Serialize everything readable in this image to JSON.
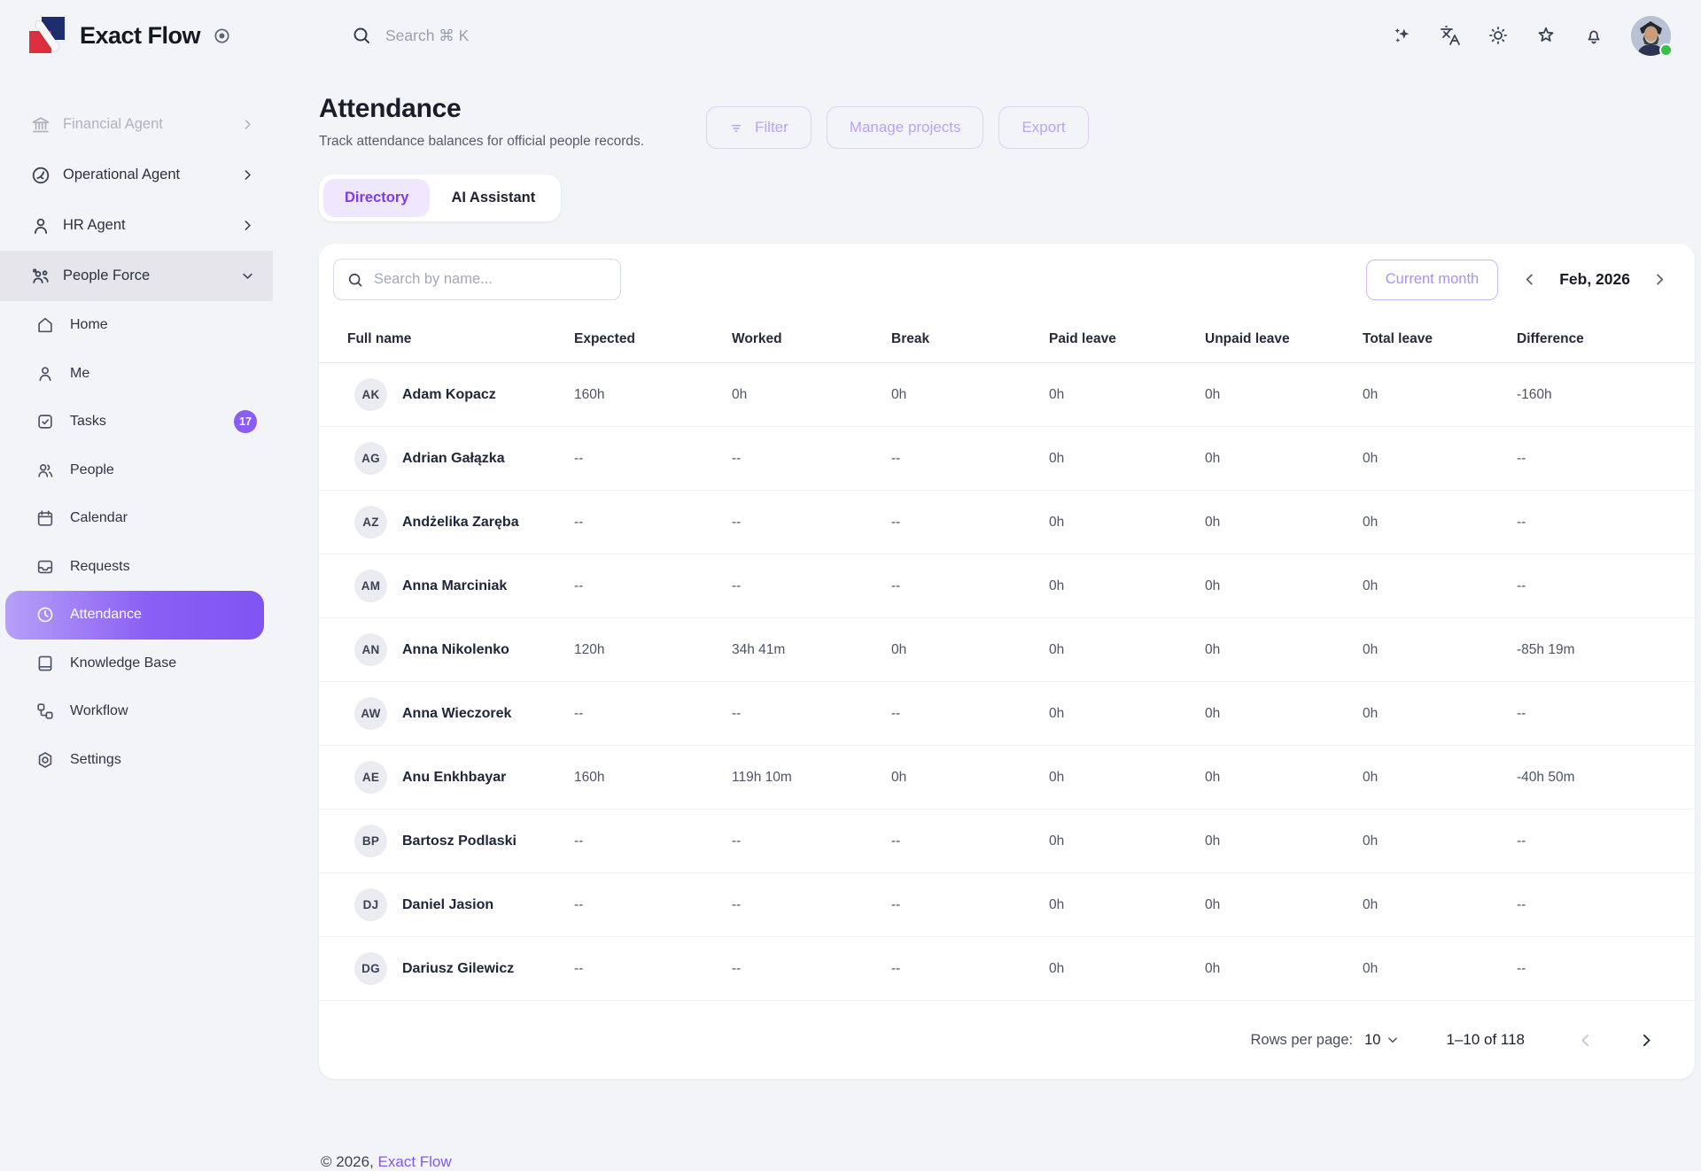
{
  "topbar": {
    "logo_text": "Exact Flow",
    "search_placeholder": "Search ⌘ K",
    "icon_buttons": [
      {
        "icon": "sparkles",
        "name": "ai-sparkles-icon"
      },
      {
        "icon": "languages",
        "name": "language-icon"
      },
      {
        "icon": "sun",
        "name": "theme-icon"
      },
      {
        "icon": "star",
        "name": "favorites-icon"
      },
      {
        "icon": "bell",
        "name": "notifications-icon"
      }
    ]
  },
  "sidebar": {
    "groups": [
      {
        "label": "Financial Agent",
        "icon": "bank",
        "muted": true,
        "chevron": "chevron-right"
      },
      {
        "label": "Operational Agent",
        "icon": "knot",
        "muted": false,
        "chevron": "chevron-right"
      },
      {
        "label": "HR Agent",
        "icon": "person",
        "muted": false,
        "chevron": "chevron-right"
      },
      {
        "label": "People Force",
        "icon": "people-group",
        "muted": false,
        "chevron": "chevron-down",
        "highlighted": true
      }
    ],
    "items": [
      {
        "label": "Home",
        "icon": "home"
      },
      {
        "label": "Me",
        "icon": "person"
      },
      {
        "label": "Tasks",
        "icon": "task",
        "badge": "17"
      },
      {
        "label": "People",
        "icon": "users"
      },
      {
        "label": "Calendar",
        "icon": "calendar"
      },
      {
        "label": "Requests",
        "icon": "inbox"
      },
      {
        "label": "Attendance",
        "icon": "clock",
        "active": true
      },
      {
        "label": "Knowledge Base",
        "icon": "book"
      },
      {
        "label": "Workflow",
        "icon": "workflow"
      },
      {
        "label": "Settings",
        "icon": "nut"
      }
    ]
  },
  "page": {
    "title": "Attendance",
    "subtitle": "Track attendance balances for official people records.",
    "actions": {
      "filter": "Filter",
      "manage_projects": "Manage projects",
      "export": "Export"
    },
    "tabs": [
      {
        "label": "Directory",
        "active": true
      },
      {
        "label": "AI Assistant",
        "active": false
      }
    ]
  },
  "table_card": {
    "search_placeholder": "Search by name...",
    "current_month_label": "Current month",
    "month_label": "Feb, 2026",
    "columns": [
      "Full name",
      "Expected",
      "Worked",
      "Break",
      "Paid leave",
      "Unpaid leave",
      "Total leave",
      "Difference"
    ],
    "rows": [
      {
        "initials": "AK",
        "name": "Adam Kopacz",
        "expected": "160h",
        "worked": "0h",
        "break": "0h",
        "paid_leave": "0h",
        "unpaid_leave": "0h",
        "total_leave": "0h",
        "difference": "-160h"
      },
      {
        "initials": "AG",
        "name": "Adrian Gałązka",
        "expected": "--",
        "worked": "--",
        "break": "--",
        "paid_leave": "0h",
        "unpaid_leave": "0h",
        "total_leave": "0h",
        "difference": "--"
      },
      {
        "initials": "AZ",
        "name": "Andżelika Zaręba",
        "expected": "--",
        "worked": "--",
        "break": "--",
        "paid_leave": "0h",
        "unpaid_leave": "0h",
        "total_leave": "0h",
        "difference": "--"
      },
      {
        "initials": "AM",
        "name": "Anna Marciniak",
        "expected": "--",
        "worked": "--",
        "break": "--",
        "paid_leave": "0h",
        "unpaid_leave": "0h",
        "total_leave": "0h",
        "difference": "--"
      },
      {
        "initials": "AN",
        "name": "Anna Nikolenko",
        "expected": "120h",
        "worked": "34h 41m",
        "break": "0h",
        "paid_leave": "0h",
        "unpaid_leave": "0h",
        "total_leave": "0h",
        "difference": "-85h 19m"
      },
      {
        "initials": "AW",
        "name": "Anna Wieczorek",
        "expected": "--",
        "worked": "--",
        "break": "--",
        "paid_leave": "0h",
        "unpaid_leave": "0h",
        "total_leave": "0h",
        "difference": "--"
      },
      {
        "initials": "AE",
        "name": "Anu Enkhbayar",
        "expected": "160h",
        "worked": "119h 10m",
        "break": "0h",
        "paid_leave": "0h",
        "unpaid_leave": "0h",
        "total_leave": "0h",
        "difference": "-40h 50m"
      },
      {
        "initials": "BP",
        "name": "Bartosz Podlaski",
        "expected": "--",
        "worked": "--",
        "break": "--",
        "paid_leave": "0h",
        "unpaid_leave": "0h",
        "total_leave": "0h",
        "difference": "--"
      },
      {
        "initials": "DJ",
        "name": "Daniel Jasion",
        "expected": "--",
        "worked": "--",
        "break": "--",
        "paid_leave": "0h",
        "unpaid_leave": "0h",
        "total_leave": "0h",
        "difference": "--"
      },
      {
        "initials": "DG",
        "name": "Dariusz Gilewicz",
        "expected": "--",
        "worked": "--",
        "break": "--",
        "paid_leave": "0h",
        "unpaid_leave": "0h",
        "total_leave": "0h",
        "difference": "--"
      }
    ],
    "pagination": {
      "rows_per_page_label": "Rows per page:",
      "rows_per_page_value": "10",
      "range_label": "1–10 of 118"
    }
  },
  "footer": {
    "copyright": "© 2026,",
    "brand_link": "Exact Flow"
  },
  "colors": {
    "accent": "#8b5cf6",
    "accent_gradient_start": "#b7a0f8",
    "accent_gradient_end": "#7f54f3",
    "tab_active_bg": "#efe7fd",
    "tab_active_text": "#7b3dee",
    "outline_button_text": "#bca3f9",
    "status_online": "#35c243",
    "logo_navy": "#1d2d6d",
    "logo_red": "#dd2f3d"
  }
}
